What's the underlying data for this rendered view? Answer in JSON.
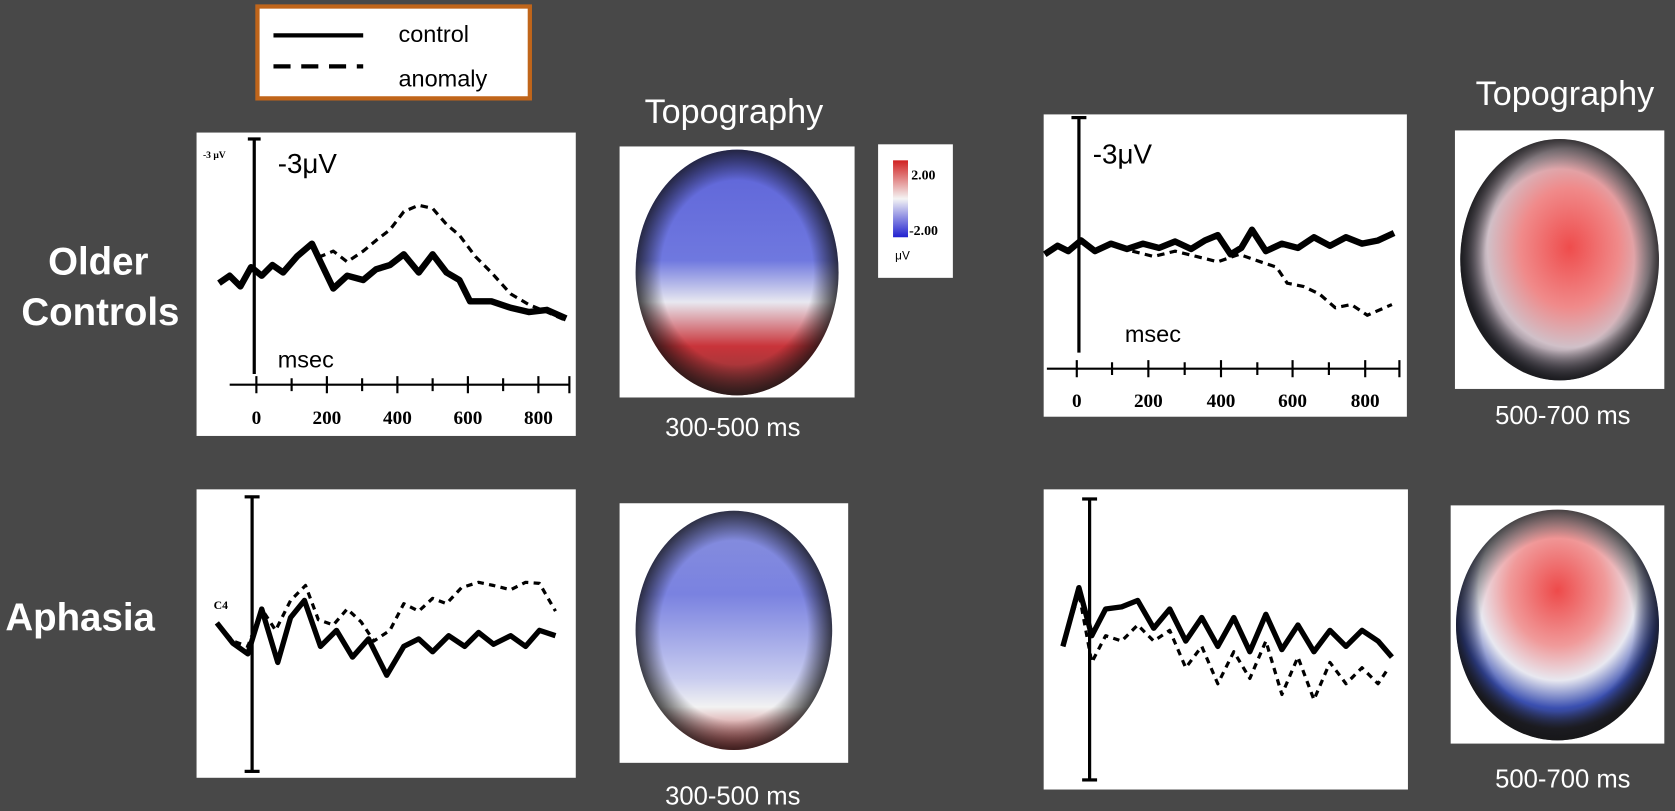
{
  "legend": {
    "items": [
      "control",
      "anomaly"
    ]
  },
  "row_labels": {
    "older_controls": [
      "Older",
      "Controls"
    ],
    "aphasia": "Aphasia"
  },
  "topography_heading": "Topography",
  "time_windows": {
    "left": "300-500 ms",
    "right": "500-700 ms"
  },
  "erp": {
    "amplitude": "-3μV",
    "small_amplitude": "-3 μV",
    "electrode": "C4",
    "x_unit": "msec",
    "x_ticks": [
      "0",
      "200",
      "400",
      "600",
      "800"
    ]
  },
  "colorbar": {
    "max": "2.00",
    "min": "-2.00",
    "unit": "μV"
  }
}
